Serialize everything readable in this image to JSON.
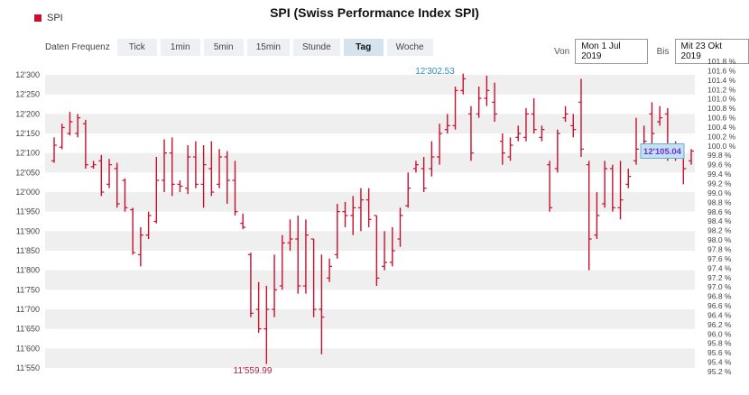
{
  "legend": {
    "label": "SPI"
  },
  "title": "SPI (Swiss Performance Index SPI)",
  "toolbar": {
    "label": "Daten Frequenz",
    "buttons": [
      "Tick",
      "1min",
      "5min",
      "15min",
      "Stunde",
      "Tag",
      "Woche"
    ],
    "active": "Tag"
  },
  "range": {
    "from_label": "Von",
    "from": "Mon 1 Jul 2019",
    "to_label": "Bis",
    "to": "Mit 23 Okt 2019"
  },
  "colors": {
    "bar": "#c8102e",
    "band": "#efefef",
    "high_label": "#2a8fbd",
    "low_label": "#b0204a",
    "current_label": "#7a2bd1"
  },
  "chart_data": {
    "type": "ohlc",
    "title": "SPI (Swiss Performance Index SPI)",
    "series_name": "SPI",
    "y_left": {
      "min": 11550,
      "max": 12300,
      "ticks": [
        "12'300",
        "12'250",
        "12'200",
        "12'150",
        "12'100",
        "12'050",
        "12'000",
        "11'950",
        "11'900",
        "11'850",
        "11'800",
        "11'750",
        "11'700",
        "11'650",
        "11'600",
        "11'550"
      ]
    },
    "y_right": {
      "min": 95.2,
      "max": 101.8,
      "ticks": [
        "101.8 %",
        "101.6 %",
        "101.4 %",
        "101.2 %",
        "101.0 %",
        "100.8 %",
        "100.6 %",
        "100.4 %",
        "100.2 %",
        "100.0 %",
        "99.8 %",
        "99.6 %",
        "99.4 %",
        "99.2 %",
        "99.0 %",
        "98.8 %",
        "98.6 %",
        "98.4 %",
        "98.2 %",
        "98.0 %",
        "97.8 %",
        "97.6 %",
        "97.4 %",
        "97.2 %",
        "97.0 %",
        "96.8 %",
        "96.6 %",
        "96.4 %",
        "96.2 %",
        "96.0 %",
        "95.8 %",
        "95.6 %",
        "95.4 %",
        "95.2 %"
      ]
    },
    "grid_bands": "alternating",
    "annotations": {
      "high": "12'302.53",
      "low": "11'559.99",
      "current": "12'105.04"
    },
    "bars": [
      {
        "h": 12140,
        "l": 12075,
        "o": 12080,
        "c": 12120
      },
      {
        "h": 12175,
        "l": 12110,
        "o": 12115,
        "c": 12165
      },
      {
        "h": 12205,
        "l": 12145,
        "o": 12150,
        "c": 12180
      },
      {
        "h": 12200,
        "l": 12140,
        "o": 12150,
        "c": 12190
      },
      {
        "h": 12185,
        "l": 12060,
        "o": 12175,
        "c": 12070
      },
      {
        "h": 12080,
        "l": 12060,
        "o": 12065,
        "c": 12070
      },
      {
        "h": 12095,
        "l": 11990,
        "o": 12080,
        "c": 12000
      },
      {
        "h": 12085,
        "l": 12010,
        "o": 12020,
        "c": 12070
      },
      {
        "h": 12075,
        "l": 11960,
        "o": 12060,
        "c": 11970
      },
      {
        "h": 12035,
        "l": 11950,
        "o": 12030,
        "c": 11960
      },
      {
        "h": 11960,
        "l": 11840,
        "o": 11955,
        "c": 11845
      },
      {
        "h": 11910,
        "l": 11810,
        "o": 11840,
        "c": 11890
      },
      {
        "h": 11950,
        "l": 11880,
        "o": 11890,
        "c": 11940
      },
      {
        "h": 12090,
        "l": 11920,
        "o": 11925,
        "c": 12030
      },
      {
        "h": 12135,
        "l": 12000,
        "o": 12030,
        "c": 12100
      },
      {
        "h": 12140,
        "l": 11990,
        "o": 12100,
        "c": 12020
      },
      {
        "h": 12030,
        "l": 12000,
        "o": 12020,
        "c": 12015
      },
      {
        "h": 12120,
        "l": 11995,
        "o": 12010,
        "c": 12090
      },
      {
        "h": 12130,
        "l": 12010,
        "o": 12090,
        "c": 12020
      },
      {
        "h": 12120,
        "l": 11960,
        "o": 12020,
        "c": 12070
      },
      {
        "h": 12130,
        "l": 11990,
        "o": 12060,
        "c": 12000
      },
      {
        "h": 12110,
        "l": 12010,
        "o": 12020,
        "c": 12090
      },
      {
        "h": 12105,
        "l": 11970,
        "o": 12090,
        "c": 12030
      },
      {
        "h": 12080,
        "l": 11940,
        "o": 12030,
        "c": 11950
      },
      {
        "h": 11945,
        "l": 11905,
        "o": 11920,
        "c": 11910
      },
      {
        "h": 11845,
        "l": 11680,
        "o": 11840,
        "c": 11690
      },
      {
        "h": 11770,
        "l": 11640,
        "o": 11700,
        "c": 11650
      },
      {
        "h": 11760,
        "l": 11560,
        "o": 11650,
        "c": 11700
      },
      {
        "h": 11840,
        "l": 11680,
        "o": 11700,
        "c": 11750
      },
      {
        "h": 11890,
        "l": 11750,
        "o": 11760,
        "c": 11870
      },
      {
        "h": 11930,
        "l": 11850,
        "o": 11870,
        "c": 11880
      },
      {
        "h": 11940,
        "l": 11740,
        "o": 11880,
        "c": 11760
      },
      {
        "h": 11930,
        "l": 11740,
        "o": 11760,
        "c": 11890
      },
      {
        "h": 11880,
        "l": 11680,
        "o": 11880,
        "c": 11700
      },
      {
        "h": 11840,
        "l": 11585,
        "o": 11700,
        "c": 11680
      },
      {
        "h": 11830,
        "l": 11770,
        "o": 11780,
        "c": 11810
      },
      {
        "h": 11970,
        "l": 11830,
        "o": 11840,
        "c": 11950
      },
      {
        "h": 11975,
        "l": 11910,
        "o": 11950,
        "c": 11940
      },
      {
        "h": 11990,
        "l": 11890,
        "o": 11940,
        "c": 11960
      },
      {
        "h": 12010,
        "l": 11900,
        "o": 11960,
        "c": 11980
      },
      {
        "h": 12010,
        "l": 11910,
        "o": 11980,
        "c": 11930
      },
      {
        "h": 11940,
        "l": 11760,
        "o": 11940,
        "c": 11780
      },
      {
        "h": 11900,
        "l": 11800,
        "o": 11810,
        "c": 11820
      },
      {
        "h": 11910,
        "l": 11810,
        "o": 11820,
        "c": 11850
      },
      {
        "h": 11960,
        "l": 11860,
        "o": 11880,
        "c": 11940
      },
      {
        "h": 12050,
        "l": 11960,
        "o": 11965,
        "c": 12010
      },
      {
        "h": 12080,
        "l": 12050,
        "o": 12060,
        "c": 12070
      },
      {
        "h": 12090,
        "l": 12000,
        "o": 12060,
        "c": 12010
      },
      {
        "h": 12130,
        "l": 12040,
        "o": 12060,
        "c": 12090
      },
      {
        "h": 12175,
        "l": 12070,
        "o": 12090,
        "c": 12150
      },
      {
        "h": 12200,
        "l": 12150,
        "o": 12160,
        "c": 12170
      },
      {
        "h": 12270,
        "l": 12160,
        "o": 12170,
        "c": 12260
      },
      {
        "h": 12303,
        "l": 12250,
        "o": 12260,
        "c": 12290
      },
      {
        "h": 12220,
        "l": 12080,
        "o": 12200,
        "c": 12100
      },
      {
        "h": 12270,
        "l": 12190,
        "o": 12200,
        "c": 12240
      },
      {
        "h": 12298,
        "l": 12220,
        "o": 12240,
        "c": 12260
      },
      {
        "h": 12280,
        "l": 12180,
        "o": 12230,
        "c": 12200
      },
      {
        "h": 12150,
        "l": 12070,
        "o": 12130,
        "c": 12100
      },
      {
        "h": 12140,
        "l": 12080,
        "o": 12090,
        "c": 12120
      },
      {
        "h": 12170,
        "l": 12130,
        "o": 12140,
        "c": 12150
      },
      {
        "h": 12215,
        "l": 12130,
        "o": 12140,
        "c": 12200
      },
      {
        "h": 12240,
        "l": 12150,
        "o": 12200,
        "c": 12160
      },
      {
        "h": 12170,
        "l": 12130,
        "o": 12140,
        "c": 12160
      },
      {
        "h": 12080,
        "l": 11950,
        "o": 12070,
        "c": 11960
      },
      {
        "h": 12160,
        "l": 12050,
        "o": 12060,
        "c": 12150
      },
      {
        "h": 12220,
        "l": 12180,
        "o": 12190,
        "c": 12200
      },
      {
        "h": 12200,
        "l": 12140,
        "o": 12170,
        "c": 12160
      },
      {
        "h": 12290,
        "l": 12090,
        "o": 12230,
        "c": 12110
      },
      {
        "h": 12080,
        "l": 11800,
        "o": 12070,
        "c": 11880
      },
      {
        "h": 12000,
        "l": 11880,
        "o": 11890,
        "c": 11940
      },
      {
        "h": 12080,
        "l": 11960,
        "o": 11970,
        "c": 12060
      },
      {
        "h": 12070,
        "l": 11950,
        "o": 12060,
        "c": 11960
      },
      {
        "h": 12080,
        "l": 11930,
        "o": 11960,
        "c": 11980
      },
      {
        "h": 12060,
        "l": 12010,
        "o": 12020,
        "c": 12040
      },
      {
        "h": 12190,
        "l": 12070,
        "o": 12080,
        "c": 12110
      },
      {
        "h": 12170,
        "l": 12100,
        "o": 12110,
        "c": 12130
      },
      {
        "h": 12230,
        "l": 12100,
        "o": 12200,
        "c": 12150
      },
      {
        "h": 12220,
        "l": 12170,
        "o": 12180,
        "c": 12190
      },
      {
        "h": 12215,
        "l": 12080,
        "o": 12200,
        "c": 12110
      },
      {
        "h": 12130,
        "l": 12080,
        "o": 12090,
        "c": 12110
      },
      {
        "h": 12100,
        "l": 12020,
        "o": 12100,
        "c": 12060
      },
      {
        "h": 12110,
        "l": 12070,
        "o": 12080,
        "c": 12105
      }
    ]
  }
}
